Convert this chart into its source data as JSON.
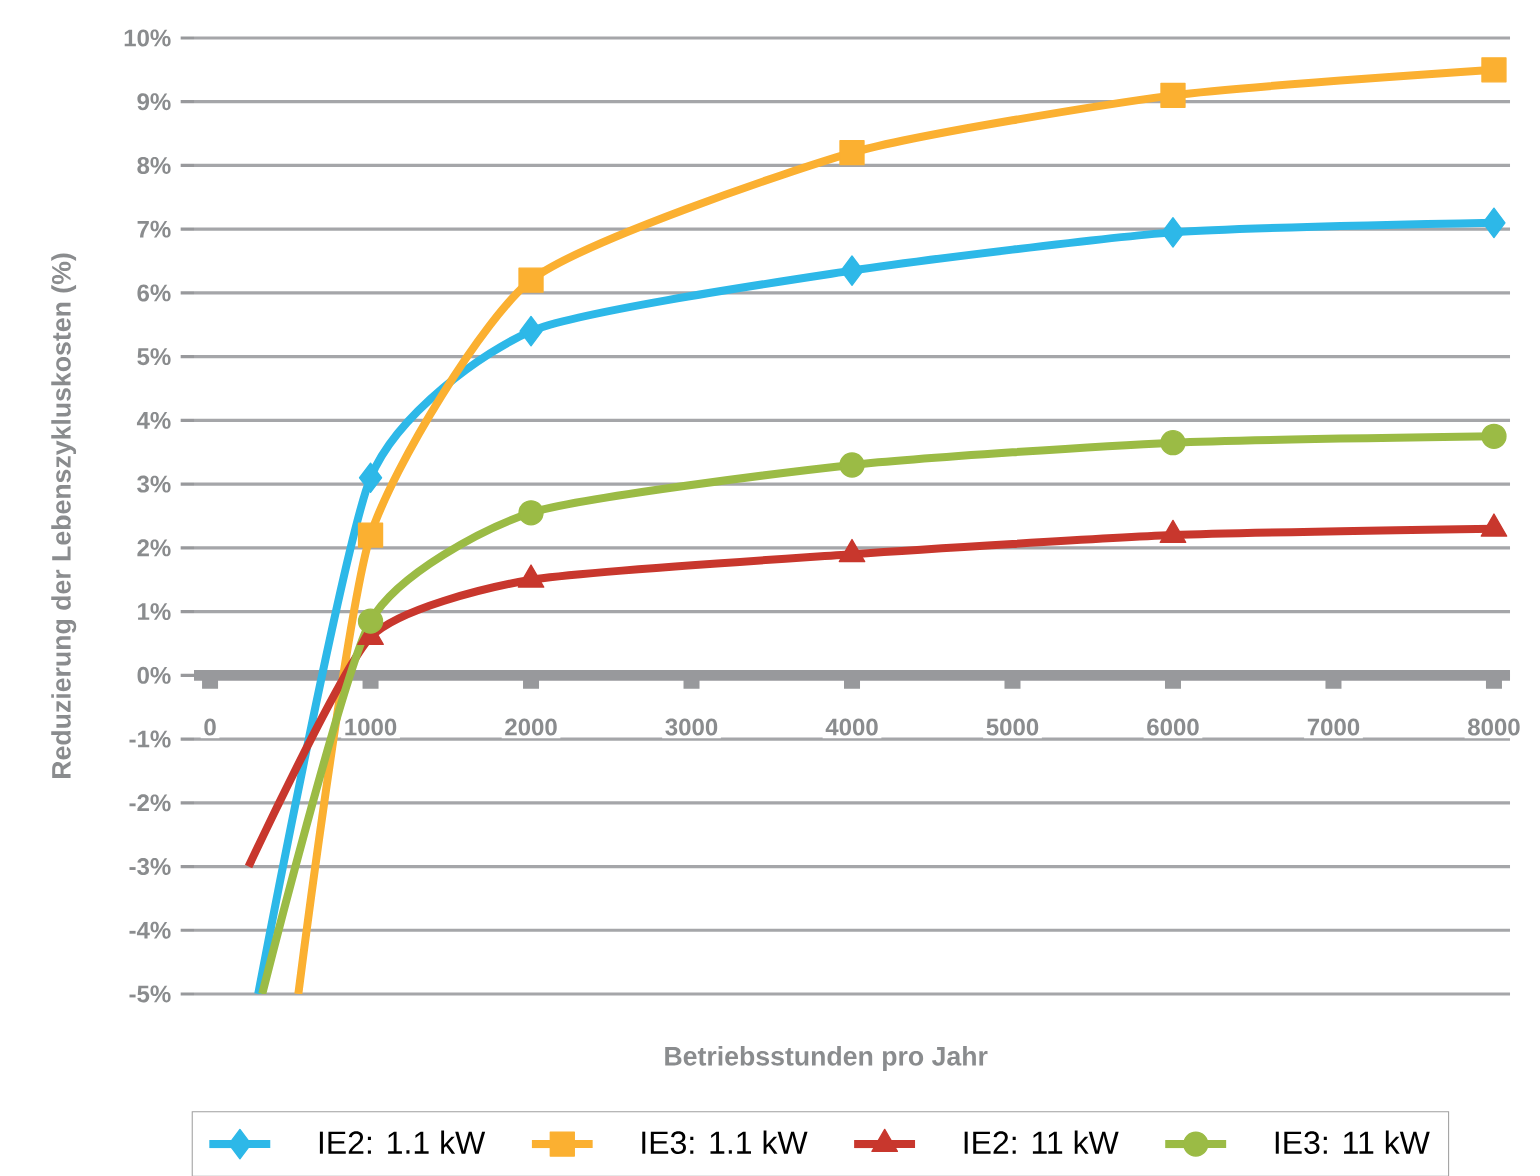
{
  "chart_data": {
    "type": "line",
    "xlabel": "Betriebsstunden pro Jahr",
    "ylabel": "Reduzierung der Lebenszykluskosten (%)",
    "xlim": [
      -100,
      8100
    ],
    "ylim": [
      -5,
      10
    ],
    "xticks": [
      0,
      1000,
      2000,
      3000,
      4000,
      5000,
      6000,
      7000,
      8000
    ],
    "yticks": [
      {
        "value": -5,
        "label": "-5%"
      },
      {
        "value": -4,
        "label": "-4%"
      },
      {
        "value": -3,
        "label": "-3%"
      },
      {
        "value": -2,
        "label": "-2%"
      },
      {
        "value": -1,
        "label": "-1%"
      },
      {
        "value": 0,
        "label": "0%"
      },
      {
        "value": 1,
        "label": "1%"
      },
      {
        "value": 2,
        "label": "2%"
      },
      {
        "value": 3,
        "label": "3%"
      },
      {
        "value": 4,
        "label": "4%"
      },
      {
        "value": 5,
        "label": "5%"
      },
      {
        "value": 6,
        "label": "6%"
      },
      {
        "value": 7,
        "label": "7%"
      },
      {
        "value": 8,
        "label": "8%"
      },
      {
        "value": 9,
        "label": "9%"
      },
      {
        "value": 10,
        "label": "10%"
      }
    ],
    "grid": "y",
    "legend": "bottom",
    "series": [
      {
        "name": "IE2: 1.1 kW",
        "color": "#2db8e8",
        "marker": "diamond",
        "x": [
          300,
          1000,
          2000,
          4000,
          6000,
          8000
        ],
        "values": [
          -5,
          3.1,
          5.4,
          6.35,
          6.95,
          7.1
        ]
      },
      {
        "name": "IE3: 1.1 kW",
        "color": "#fbb031",
        "marker": "square",
        "x": [
          550,
          1000,
          2000,
          4000,
          6000,
          8000
        ],
        "values": [
          -5,
          2.2,
          6.2,
          8.2,
          9.1,
          9.5
        ]
      },
      {
        "name": "IE2: 11 kW",
        "color": "#c8372d",
        "marker": "triangle",
        "x": [
          240,
          1000,
          2000,
          4000,
          6000,
          8000
        ],
        "values": [
          -3,
          0.6,
          1.5,
          1.9,
          2.2,
          2.3
        ]
      },
      {
        "name": "IE3: 11 kW",
        "color": "#9bbb45",
        "marker": "circle",
        "x": [
          325,
          1000,
          2000,
          4000,
          6000,
          8000
        ],
        "values": [
          -5,
          0.85,
          2.55,
          3.3,
          3.65,
          3.75
        ]
      }
    ]
  }
}
